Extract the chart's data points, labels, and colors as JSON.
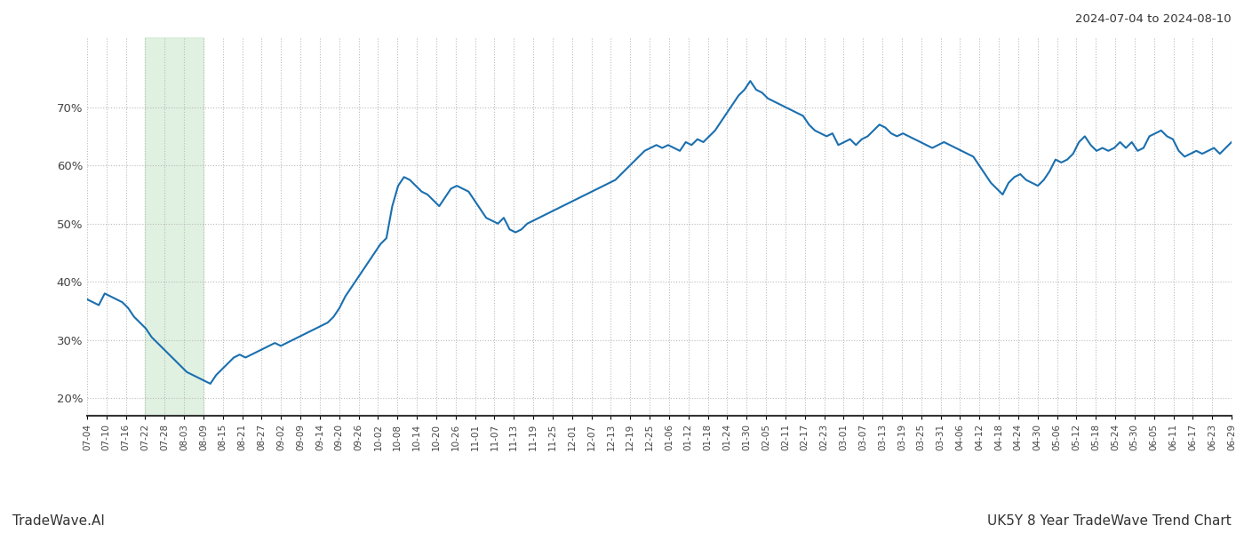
{
  "title_right": "2024-07-04 to 2024-08-10",
  "footer_left": "TradeWave.AI",
  "footer_right": "UK5Y 8 Year TradeWave Trend Chart",
  "line_color": "#1a6faf",
  "line_width": 1.5,
  "bg_color": "#ffffff",
  "grid_color": "#bbbbbb",
  "shade_color": "#c8e6c9",
  "shade_alpha": 0.55,
  "ylim": [
    17,
    82
  ],
  "yticks": [
    20,
    30,
    40,
    50,
    60,
    70
  ],
  "x_labels": [
    "07-04",
    "07-10",
    "07-16",
    "07-22",
    "07-28",
    "08-03",
    "08-09",
    "08-15",
    "08-21",
    "08-27",
    "09-02",
    "09-09",
    "09-14",
    "09-20",
    "09-26",
    "10-02",
    "10-08",
    "10-14",
    "10-20",
    "10-26",
    "11-01",
    "11-07",
    "11-13",
    "11-19",
    "11-25",
    "12-01",
    "12-07",
    "12-13",
    "12-19",
    "12-25",
    "01-06",
    "01-12",
    "01-18",
    "01-24",
    "01-30",
    "02-05",
    "02-11",
    "02-17",
    "02-23",
    "03-01",
    "03-07",
    "03-13",
    "03-19",
    "03-25",
    "03-31",
    "04-06",
    "04-12",
    "04-18",
    "04-24",
    "04-30",
    "05-06",
    "05-12",
    "05-18",
    "05-24",
    "05-30",
    "06-05",
    "06-11",
    "06-17",
    "06-23",
    "06-29"
  ],
  "shade_start_label": "07-22",
  "shade_end_label": "08-09",
  "values": [
    37.0,
    36.5,
    36.0,
    38.0,
    37.5,
    37.0,
    36.5,
    35.5,
    34.0,
    33.0,
    32.0,
    30.5,
    29.5,
    28.5,
    27.5,
    26.5,
    25.5,
    24.5,
    24.0,
    23.5,
    23.0,
    22.5,
    24.0,
    25.0,
    26.0,
    27.0,
    27.5,
    27.0,
    27.5,
    28.0,
    28.5,
    29.0,
    29.5,
    29.0,
    29.5,
    30.0,
    30.5,
    31.0,
    31.5,
    32.0,
    32.5,
    33.0,
    34.0,
    35.5,
    37.5,
    39.0,
    40.5,
    42.0,
    43.5,
    45.0,
    46.5,
    47.5,
    53.0,
    56.5,
    58.0,
    57.5,
    56.5,
    55.5,
    55.0,
    54.0,
    53.0,
    54.5,
    56.0,
    56.5,
    56.0,
    55.5,
    54.0,
    52.5,
    51.0,
    50.5,
    50.0,
    51.0,
    49.0,
    48.5,
    49.0,
    50.0,
    50.5,
    51.0,
    51.5,
    52.0,
    52.5,
    53.0,
    53.5,
    54.0,
    54.5,
    55.0,
    55.5,
    56.0,
    56.5,
    57.0,
    57.5,
    58.5,
    59.5,
    60.5,
    61.5,
    62.5,
    63.0,
    63.5,
    63.0,
    63.5,
    63.0,
    62.5,
    64.0,
    63.5,
    64.5,
    64.0,
    65.0,
    66.0,
    67.5,
    69.0,
    70.5,
    72.0,
    73.0,
    74.5,
    73.0,
    72.5,
    71.5,
    71.0,
    70.5,
    70.0,
    69.5,
    69.0,
    68.5,
    67.0,
    66.0,
    65.5,
    65.0,
    65.5,
    63.5,
    64.0,
    64.5,
    63.5,
    64.5,
    65.0,
    66.0,
    67.0,
    66.5,
    65.5,
    65.0,
    65.5,
    65.0,
    64.5,
    64.0,
    63.5,
    63.0,
    63.5,
    64.0,
    63.5,
    63.0,
    62.5,
    62.0,
    61.5,
    60.0,
    58.5,
    57.0,
    56.0,
    55.0,
    57.0,
    58.0,
    58.5,
    57.5,
    57.0,
    56.5,
    57.5,
    59.0,
    61.0,
    60.5,
    61.0,
    62.0,
    64.0,
    65.0,
    63.5,
    62.5,
    63.0,
    62.5,
    63.0,
    64.0,
    63.0,
    64.0,
    62.5,
    63.0,
    65.0,
    65.5,
    66.0,
    65.0,
    64.5,
    62.5,
    61.5,
    62.0,
    62.5,
    62.0,
    62.5,
    63.0,
    62.0,
    63.0,
    64.0
  ]
}
